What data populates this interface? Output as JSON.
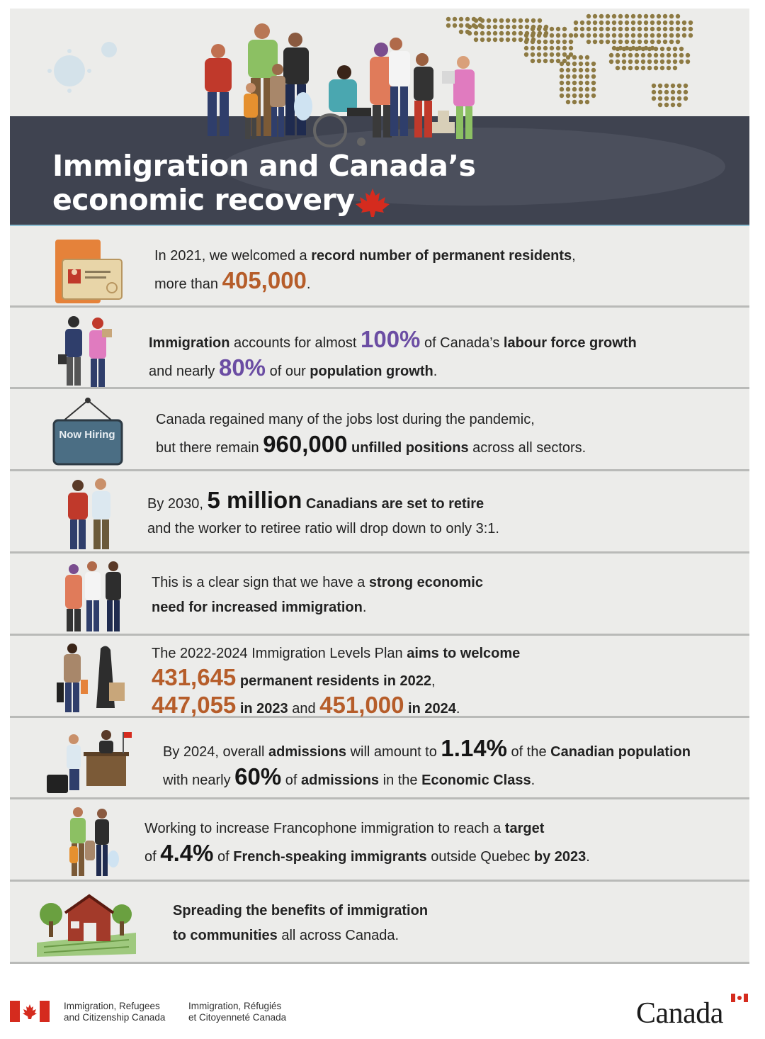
{
  "title": {
    "line1": "Immigration and Canada’s",
    "line2": "economic recovery"
  },
  "colors": {
    "orange": "#b65d2a",
    "purple": "#6b4da3",
    "band": "#3f4350",
    "panel": "#ececea",
    "red": "#d52b1e"
  },
  "rows": {
    "r1": {
      "icon": "id-card-icon",
      "a": "In 2021, we welcomed a ",
      "b": "record number of permanent residents",
      "c": ",",
      "d": "more than ",
      "e": "405,000",
      "f": "."
    },
    "r2": {
      "icon": "workers-icon",
      "a": "Immigration",
      "b": " accounts for almost ",
      "c": "100%",
      "d": " of Canada’s ",
      "e": "labour force growth",
      "f": "and nearly ",
      "g": "80%",
      "h": " of our ",
      "i": "population growth",
      "j": "."
    },
    "r3": {
      "icon": "now-hiring-sign-icon",
      "sign": "Now Hiring",
      "a": "Canada regained many of the jobs lost during the pandemic,",
      "b": "but there remain ",
      "c": "960,000",
      "d": " unfilled positions",
      "e": " across all sectors."
    },
    "r4": {
      "icon": "retirees-icon",
      "a": "By 2030, ",
      "b": "5 million",
      "c": " Canadians are set to retire",
      "d": "and the worker to retiree ratio will drop down to only 3:1."
    },
    "r5": {
      "icon": "family-icon",
      "a": "This is a clear sign that we have a ",
      "b": "strong economic",
      "c": "need for increased immigration",
      "d": "."
    },
    "r6": {
      "icon": "travellers-icon",
      "a": "The 2022-2024 Immigration Levels Plan ",
      "b": "aims to welcome",
      "c": "431,645",
      "d": " permanent residents in 2022",
      "e": ",",
      "f": "447,055",
      "g": " in 2023",
      "h": " and ",
      "i": "451,000",
      "j": " in 2024",
      "k": "."
    },
    "r7": {
      "icon": "office-desk-icon",
      "a": "By 2024, overall ",
      "b": "admissions",
      "c": " will amount to ",
      "d": "1.14%",
      "e": " of the ",
      "f": "Canadian population",
      "g": "with nearly ",
      "h": "60%",
      "i": " of ",
      "j": "admissions",
      "k": " in the ",
      "l": "Economic Class",
      "m": "."
    },
    "r8": {
      "icon": "family-children-icon",
      "a": "Working to increase Francophone immigration to reach a ",
      "b": "target",
      "c": "of ",
      "d": "4.4%",
      "e": " of ",
      "f": "French-speaking immigrants",
      "g": " outside Quebec ",
      "h": "by 2023",
      "i": "."
    },
    "r9": {
      "icon": "farm-barn-icon",
      "a": "Spreading the benefits of immigration",
      "b": "to communities",
      "c": " all across Canada."
    }
  },
  "footer": {
    "dept_en_1": "Immigration, Refugees",
    "dept_en_2": "and Citizenship Canada",
    "dept_fr_1": "Immigration, Réfugiés",
    "dept_fr_2": "et Citoyenneté Canada",
    "wordmark": "Canada"
  }
}
